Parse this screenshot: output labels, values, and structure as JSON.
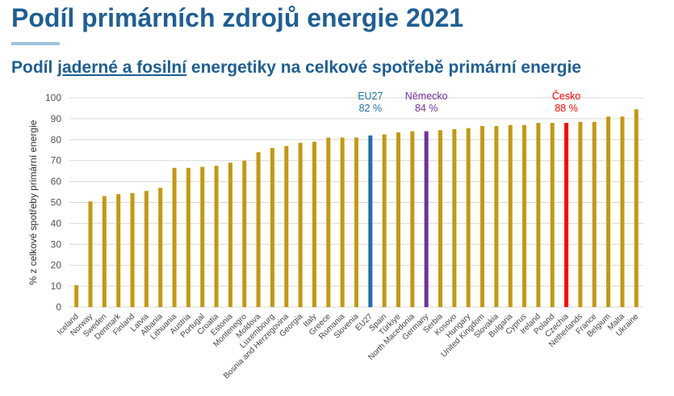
{
  "page": {
    "title": "Podíl primárních zdrojů energie 2021",
    "subtitle_pre": "Podíl ",
    "subtitle_underlined": "jaderné a fosilní",
    "subtitle_post": " energetiky na celkové spotřebě primární energie"
  },
  "colors": {
    "bar": "#c4990f",
    "eu": "#1f6fb0",
    "germany": "#7030a0",
    "czechia": "#ff0000",
    "title": "#1f5f93"
  },
  "chart_data": {
    "type": "bar",
    "title": "Podíl jaderné a fosilní energetiky na celkové spotřebě primární energie",
    "xlabel": "",
    "ylabel": "% z celkové spotřeby primární energie",
    "ylim": [
      0,
      100
    ],
    "yticks": [
      0,
      10,
      20,
      30,
      40,
      50,
      60,
      70,
      80,
      90,
      100
    ],
    "grid": true,
    "categories": [
      "Iceland",
      "Norway",
      "Sweden",
      "Denmark",
      "Finland",
      "Latvia",
      "Albania",
      "Lithuania",
      "Austria",
      "Portugal",
      "Croatia",
      "Estonia",
      "Montenegro",
      "Moldova",
      "Luxembourg",
      "Bosnia and Herzegovina",
      "Georgia",
      "Italy",
      "Greece",
      "Romania",
      "Slovenia",
      "EU27",
      "Spain",
      "Türkiye",
      "North Macedonia",
      "Germany",
      "Serbia",
      "Kosovo",
      "Hungary",
      "United Kingdom",
      "Slovakia",
      "Bulgaria",
      "Cyprus",
      "Ireland",
      "Poland",
      "Czechia",
      "Netherlands",
      "France",
      "Belgium",
      "Malta",
      "Ukraine"
    ],
    "values": [
      10.5,
      50.5,
      53,
      54,
      54.5,
      55.5,
      57,
      66.5,
      66.5,
      67,
      67.5,
      69,
      70,
      74,
      76,
      77,
      78.5,
      79,
      81,
      81,
      81,
      82,
      82.5,
      83.5,
      84,
      84,
      84.5,
      85,
      85.5,
      86.5,
      86.5,
      87,
      87,
      88,
      88,
      88,
      88.5,
      88.5,
      91,
      91,
      94.5
    ],
    "highlights": [
      {
        "category": "EU27",
        "label": "EU27",
        "value_label": "82 %",
        "color": "#1f6fb0"
      },
      {
        "category": "Germany",
        "label": "Německo",
        "value_label": "84 %",
        "color": "#7030a0"
      },
      {
        "category": "Czechia",
        "label": "Česko",
        "value_label": "88 %",
        "color": "#ff0000"
      }
    ]
  }
}
